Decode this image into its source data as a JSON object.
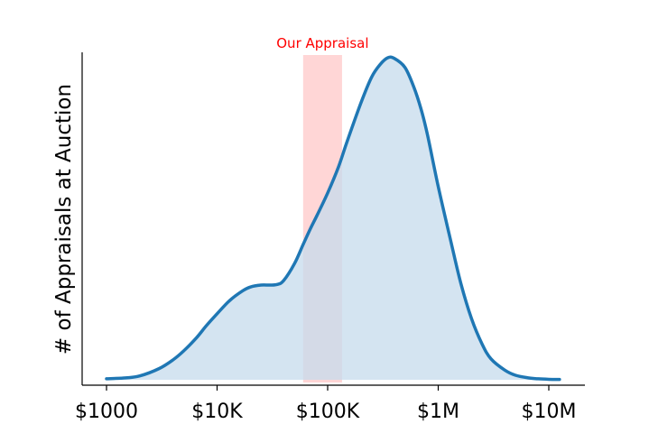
{
  "chart_data": {
    "type": "area",
    "title": "",
    "xlabel": "",
    "ylabel": "# of Appraisals at Auction",
    "x_scale": "log",
    "x_ticks": [
      1000,
      10000,
      100000,
      1000000,
      10000000
    ],
    "x_tick_labels": [
      "$1000",
      "$10K",
      "$100K",
      "$1M",
      "$10M"
    ],
    "x_range": [
      700,
      15000000
    ],
    "y_range": [
      0,
      1.02
    ],
    "y_ticks_visible": false,
    "grid": false,
    "series": [
      {
        "color": "#1f77b4",
        "fill": "#c6dbec",
        "x": [
          1000,
          1500,
          2000,
          3000,
          4000,
          5000,
          6500,
          8000,
          10000,
          13000,
          17000,
          20000,
          25000,
          30000,
          35000,
          40000,
          50000,
          60000,
          70000,
          80000,
          100000,
          125000,
          150000,
          200000,
          250000,
          300000,
          350000,
          400000,
          500000,
          600000,
          700000,
          800000,
          1000000,
          1300000,
          1600000,
          2000000,
          2500000,
          3000000,
          4000000,
          5000000,
          6500000,
          8000000,
          10000000,
          12500000
        ],
        "y": [
          0.003,
          0.006,
          0.012,
          0.035,
          0.062,
          0.09,
          0.13,
          0.168,
          0.205,
          0.246,
          0.276,
          0.288,
          0.294,
          0.294,
          0.296,
          0.308,
          0.36,
          0.42,
          0.47,
          0.51,
          0.58,
          0.66,
          0.74,
          0.86,
          0.94,
          0.98,
          1.0,
          0.998,
          0.97,
          0.91,
          0.84,
          0.76,
          0.6,
          0.43,
          0.3,
          0.19,
          0.11,
          0.065,
          0.03,
          0.014,
          0.006,
          0.003,
          0.0015,
          0.001
        ]
      }
    ],
    "annotations": [
      {
        "type": "band",
        "label": "Our Appraisal",
        "x_start": 60000,
        "x_end": 135000,
        "color": "#ff0000",
        "opacity": 0.16
      }
    ]
  }
}
